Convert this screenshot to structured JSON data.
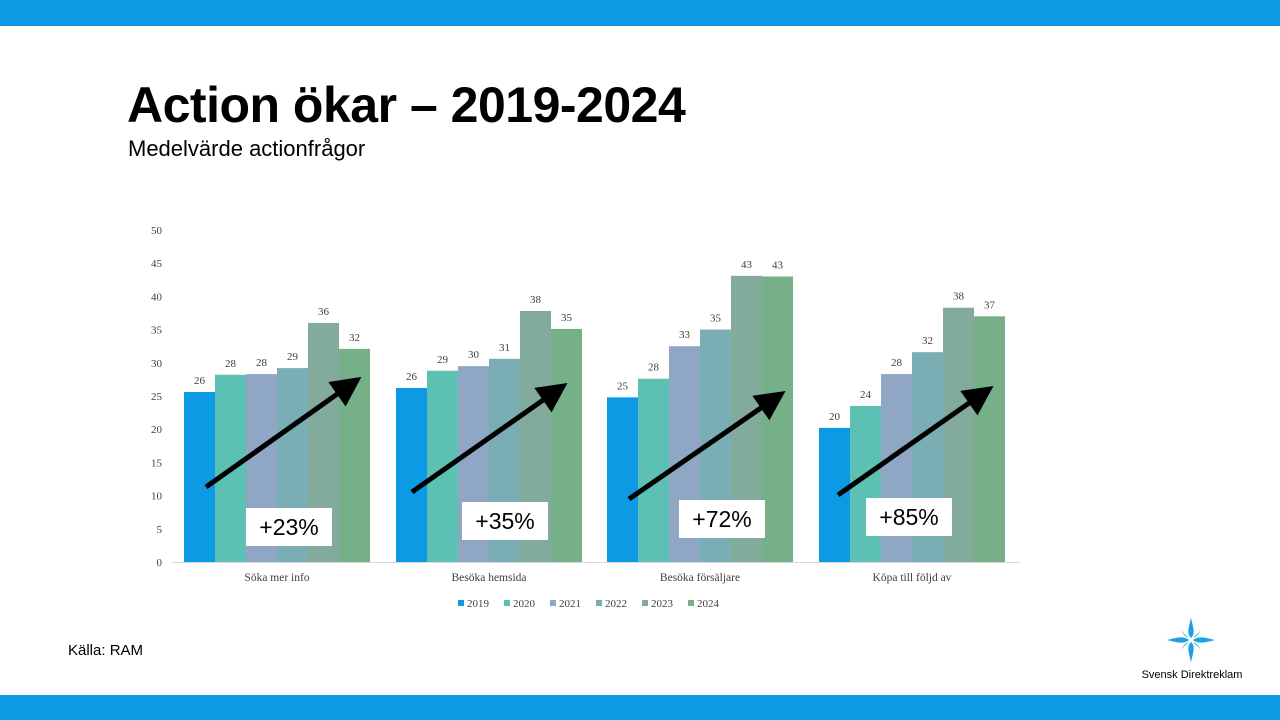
{
  "slide": {
    "title": "Action ökar – 2019-2024",
    "subtitle": "Medelvärde actionfrågor",
    "source": "Källa: RAM"
  },
  "logo": {
    "text": "Svensk Direktreklam"
  },
  "colors": {
    "band": "#0b9ae3",
    "logo": "#1ba1e2"
  },
  "chart_data": {
    "type": "bar",
    "categories": [
      "Söka mer info",
      "Besöka hemsida",
      "Besöka försäljare",
      "Köpa till följd av"
    ],
    "series": [
      {
        "name": "2019",
        "color": "#0b9ae3",
        "values": [
          25.6,
          26.2,
          24.8,
          20.2
        ]
      },
      {
        "name": "2020",
        "color": "#5cc0b2",
        "values": [
          28.2,
          28.8,
          27.6,
          23.5
        ]
      },
      {
        "name": "2021",
        "color": "#8fa7c5",
        "values": [
          28.3,
          29.5,
          32.5,
          28.3
        ]
      },
      {
        "name": "2022",
        "color": "#79aeb5",
        "values": [
          29.2,
          30.6,
          35.0,
          31.6
        ]
      },
      {
        "name": "2023",
        "color": "#82ab9b",
        "values": [
          36.0,
          37.8,
          43.1,
          38.3
        ]
      },
      {
        "name": "2024",
        "color": "#75b088",
        "values": [
          32.1,
          35.1,
          43.0,
          37.0
        ]
      }
    ],
    "data_labels": [
      [
        "26",
        "28",
        "28",
        "29",
        "36",
        "32"
      ],
      [
        "26",
        "29",
        "30",
        "31",
        "38",
        "35"
      ],
      [
        "25",
        "28",
        "33",
        "35",
        "43",
        "43"
      ],
      [
        "20",
        "24",
        "28",
        "32",
        "38",
        "37"
      ]
    ],
    "annotations": [
      "+23%",
      "+35%",
      "+72%",
      "+85%"
    ],
    "yticks": [
      0,
      5,
      10,
      15,
      20,
      25,
      30,
      35,
      40,
      45,
      50
    ],
    "ylim": [
      0,
      50
    ],
    "legend_position": "bottom",
    "grid": false
  }
}
